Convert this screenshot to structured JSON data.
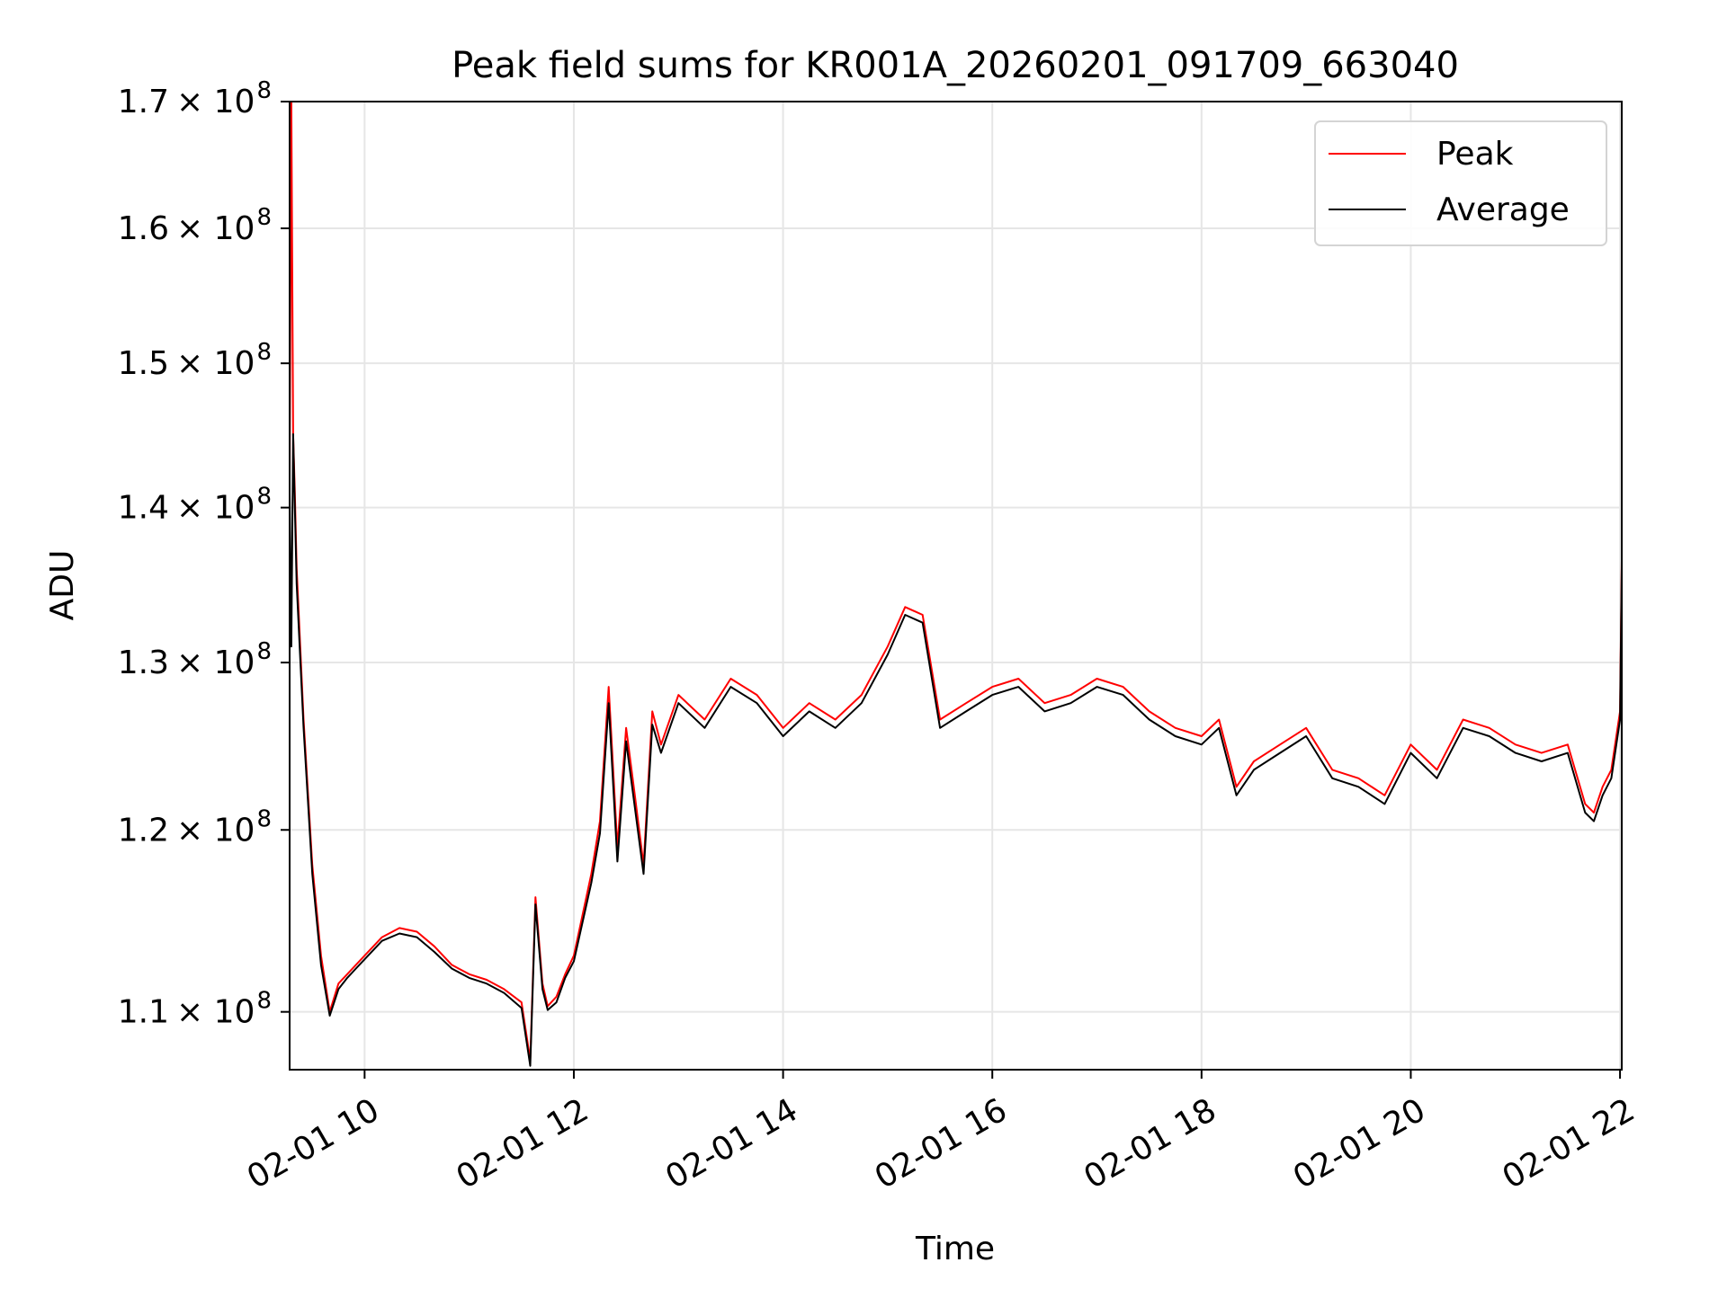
{
  "chart_data": {
    "type": "line",
    "title": "Peak field sums for KR001A_20260201_091709_663040",
    "xlabel": "Time",
    "ylabel": "ADU",
    "y_scale": "log",
    "xlim": [
      "02-01 09:17",
      "02-01 22:01"
    ],
    "ylim": [
      107000000,
      170000000
    ],
    "x_ticks": [
      "02-01 10",
      "02-01 12",
      "02-01 14",
      "02-01 16",
      "02-01 18",
      "02-01 20",
      "02-01 22"
    ],
    "y_ticks": [
      {
        "value": 110000000,
        "mantissa": "1.1",
        "exp": "8"
      },
      {
        "value": 120000000,
        "mantissa": "1.2",
        "exp": "8"
      },
      {
        "value": 130000000,
        "mantissa": "1.3",
        "exp": "8"
      },
      {
        "value": 140000000,
        "mantissa": "1.4",
        "exp": "8"
      },
      {
        "value": 150000000,
        "mantissa": "1.5",
        "exp": "8"
      },
      {
        "value": 160000000,
        "mantissa": "1.6",
        "exp": "8"
      },
      {
        "value": 170000000,
        "mantissa": "1.7",
        "exp": "8"
      }
    ],
    "y_tick_base": "× 10",
    "grid": true,
    "legend_position": "top-right",
    "x": [
      "02-01 09:17",
      "02-01 09:18",
      "02-01 09:19",
      "02-01 09:20",
      "02-01 09:21",
      "02-01 09:25",
      "02-01 09:30",
      "02-01 09:35",
      "02-01 09:40",
      "02-01 09:45",
      "02-01 09:50",
      "02-01 09:55",
      "02-01 10:00",
      "02-01 10:10",
      "02-01 10:20",
      "02-01 10:30",
      "02-01 10:40",
      "02-01 10:50",
      "02-01 11:00",
      "02-01 11:10",
      "02-01 11:20",
      "02-01 11:30",
      "02-01 11:35",
      "02-01 11:38",
      "02-01 11:42",
      "02-01 11:45",
      "02-01 11:50",
      "02-01 11:55",
      "02-01 12:00",
      "02-01 12:10",
      "02-01 12:15",
      "02-01 12:20",
      "02-01 12:25",
      "02-01 12:30",
      "02-01 12:35",
      "02-01 12:40",
      "02-01 12:45",
      "02-01 12:50",
      "02-01 13:00",
      "02-01 13:15",
      "02-01 13:30",
      "02-01 13:45",
      "02-01 14:00",
      "02-01 14:15",
      "02-01 14:30",
      "02-01 14:45",
      "02-01 15:00",
      "02-01 15:10",
      "02-01 15:20",
      "02-01 15:30",
      "02-01 15:45",
      "02-01 16:00",
      "02-01 16:15",
      "02-01 16:30",
      "02-01 16:45",
      "02-01 17:00",
      "02-01 17:15",
      "02-01 17:30",
      "02-01 17:45",
      "02-01 18:00",
      "02-01 18:10",
      "02-01 18:20",
      "02-01 18:30",
      "02-01 18:45",
      "02-01 19:00",
      "02-01 19:15",
      "02-01 19:30",
      "02-01 19:45",
      "02-01 20:00",
      "02-01 20:15",
      "02-01 20:30",
      "02-01 20:45",
      "02-01 21:00",
      "02-01 21:15",
      "02-01 21:30",
      "02-01 21:40",
      "02-01 21:45",
      "02-01 21:50",
      "02-01 21:55",
      "02-01 22:00",
      "02-01 22:01"
    ],
    "series": [
      {
        "name": "Peak",
        "color": "#ff0000",
        "values": [
          142000000,
          170000000,
          145000000,
          141000000,
          136000000,
          126500000,
          118000000,
          113000000,
          110000000,
          111500000,
          112000000,
          112500000,
          113000000,
          114000000,
          114500000,
          114300000,
          113500000,
          112500000,
          112000000,
          111700000,
          111200000,
          110500000,
          107500000,
          116200000,
          111500000,
          110300000,
          110800000,
          112000000,
          113000000,
          117500000,
          120500000,
          128500000,
          119000000,
          126000000,
          122000000,
          118000000,
          127000000,
          125000000,
          128000000,
          126500000,
          129000000,
          128000000,
          126000000,
          127500000,
          126500000,
          128000000,
          131000000,
          133500000,
          133000000,
          126500000,
          127500000,
          128500000,
          129000000,
          127500000,
          128000000,
          129000000,
          128500000,
          127000000,
          126000000,
          125500000,
          126500000,
          122500000,
          124000000,
          125000000,
          126000000,
          123500000,
          123000000,
          122000000,
          125000000,
          123500000,
          126500000,
          126000000,
          125000000,
          124500000,
          125000000,
          121500000,
          121000000,
          122500000,
          123500000,
          127000000,
          136500000
        ]
      },
      {
        "name": "Average",
        "color": "#000000",
        "values": [
          141000000,
          131000000,
          145000000,
          140000000,
          135000000,
          126000000,
          117500000,
          112500000,
          109800000,
          111200000,
          111800000,
          112300000,
          112800000,
          113800000,
          114200000,
          114000000,
          113200000,
          112300000,
          111800000,
          111500000,
          111000000,
          110200000,
          107200000,
          115800000,
          111200000,
          110100000,
          110500000,
          111800000,
          112700000,
          117000000,
          119800000,
          127500000,
          118200000,
          125200000,
          121300000,
          117500000,
          126200000,
          124500000,
          127500000,
          126000000,
          128500000,
          127500000,
          125500000,
          127000000,
          126000000,
          127500000,
          130500000,
          133000000,
          132500000,
          126000000,
          127000000,
          128000000,
          128500000,
          127000000,
          127500000,
          128500000,
          128000000,
          126500000,
          125500000,
          125000000,
          126000000,
          122000000,
          123500000,
          124500000,
          125500000,
          123000000,
          122500000,
          121500000,
          124500000,
          123000000,
          126000000,
          125500000,
          124500000,
          124000000,
          124500000,
          121000000,
          120500000,
          122000000,
          123000000,
          126500000,
          136000000
        ]
      }
    ]
  }
}
